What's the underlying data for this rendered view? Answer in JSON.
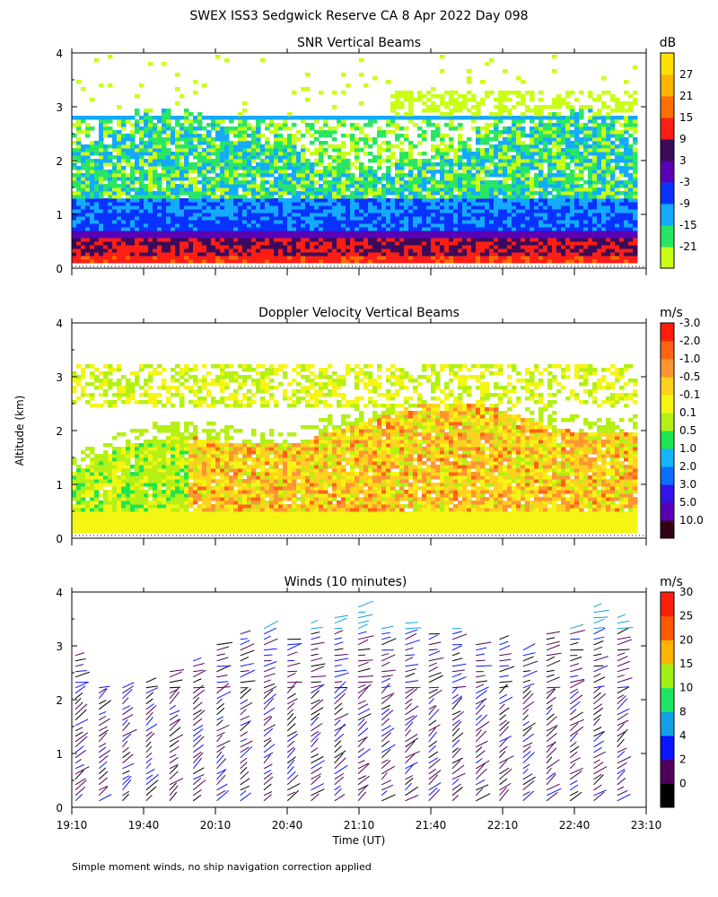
{
  "figure": {
    "title": "SWEX ISS3 Sedgwick Reserve CA   8 Apr 2022 Day 098",
    "footnote": "Simple moment winds, no ship navigation correction applied",
    "ylabel": "Altitude (km)",
    "xlabel": "Time (UT)"
  },
  "chart_data": [
    {
      "type": "heatmap",
      "title": "SNR Vertical Beams",
      "unit": "dB",
      "x_range_hours": [
        19.1667,
        23.1667
      ],
      "ylim": [
        0,
        4
      ],
      "yticks": [
        0,
        1,
        2,
        3,
        4
      ],
      "colorbar": {
        "levels": [
          "-21",
          "-15",
          "-9",
          "-3",
          "3",
          "9",
          "15",
          "21",
          "27"
        ],
        "colors": [
          "#c8ff14",
          "#28e664",
          "#14aaff",
          "#0a32ff",
          "#5a00b4",
          "#3c0a5a",
          "#ff1e14",
          "#ff6e00",
          "#ffb400",
          "#ffe000"
        ]
      },
      "features": [
        {
          "name": "strong-near-ground-echo",
          "alt_km": [
            0.1,
            0.6
          ],
          "level_db": 15
        },
        {
          "name": "boundary-layer",
          "alt_km": [
            0.6,
            1.2
          ],
          "level_db": -3
        },
        {
          "name": "mid-layer",
          "alt_km": [
            1.2,
            2.4
          ],
          "level_db": -15
        },
        {
          "name": "persistent-layer-2.75km",
          "alt_km": [
            2.72,
            2.8
          ],
          "level_db": -9
        }
      ]
    },
    {
      "type": "heatmap",
      "title": "Doppler Velocity Vertical Beams",
      "unit": "m/s",
      "x_range_hours": [
        19.1667,
        23.1667
      ],
      "ylim": [
        0,
        4
      ],
      "yticks": [
        0,
        1,
        2,
        3,
        4
      ],
      "colorbar": {
        "levels": [
          "10.0",
          "5.0",
          "3.0",
          "2.0",
          "1.0",
          "0.5",
          "0.1",
          "-0.1",
          "-0.5",
          "-1.0",
          "-2.0",
          "-3.0"
        ],
        "colors": [
          "#320014",
          "#5a00b4",
          "#3214e6",
          "#0a6eff",
          "#14b4ff",
          "#1ee650",
          "#b4f014",
          "#f5f514",
          "#ffd21e",
          "#ff9632",
          "#ff6414",
          "#ff1e0a"
        ]
      },
      "features": [
        {
          "name": "near-surface",
          "alt_km": [
            0.1,
            0.5
          ],
          "velocity_ms": -0.1
        },
        {
          "name": "convective-layer",
          "alt_km": [
            0.5,
            2.4
          ],
          "velocity_ms": -0.5
        },
        {
          "name": "upper-layer",
          "alt_km": [
            2.4,
            3.2
          ],
          "velocity_ms": 0.1
        }
      ]
    },
    {
      "type": "scatter",
      "title": "Winds (10 minutes)",
      "unit": "m/s",
      "x": [
        "19:10",
        "19:40",
        "20:10",
        "20:40",
        "21:10",
        "21:40",
        "22:10",
        "22:40",
        "23:10"
      ],
      "x_range_hours": [
        19.1667,
        23.1667
      ],
      "ylim": [
        0,
        4
      ],
      "yticks": [
        0,
        1,
        2,
        3,
        4
      ],
      "colorbar": {
        "levels": [
          "0",
          "2",
          "4",
          "8",
          "10",
          "15",
          "20",
          "25",
          "30"
        ],
        "colors": [
          "#000000",
          "#50005a",
          "#0a14ff",
          "#14a0e6",
          "#1ee664",
          "#a0f014",
          "#ffb400",
          "#ff5a00",
          "#ff1e0a"
        ]
      },
      "wind_columns": 24,
      "max_alt_km": [
        2.9,
        2.3,
        2.3,
        2.4,
        2.6,
        2.8,
        3.1,
        3.3,
        3.4,
        3.2,
        3.5,
        3.6,
        3.8,
        3.4,
        3.5,
        3.3,
        3.4,
        3.1,
        3.2,
        3.0,
        3.3,
        3.4,
        3.8,
        3.6
      ]
    }
  ]
}
